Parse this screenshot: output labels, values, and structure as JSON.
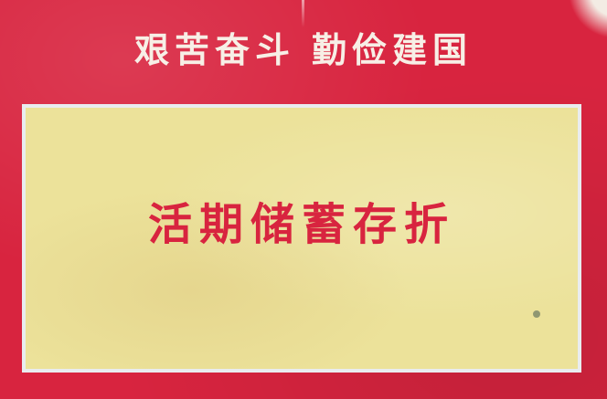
{
  "cover": {
    "slogan_left": "艰苦奋斗",
    "slogan_right": "勤俭建国",
    "title": "活期储蓄存折"
  },
  "colors": {
    "cover_red": "#d8243f",
    "panel_yellow": "#ece29a",
    "slogan_text": "#f7efe6",
    "title_text": "#d8243f"
  }
}
